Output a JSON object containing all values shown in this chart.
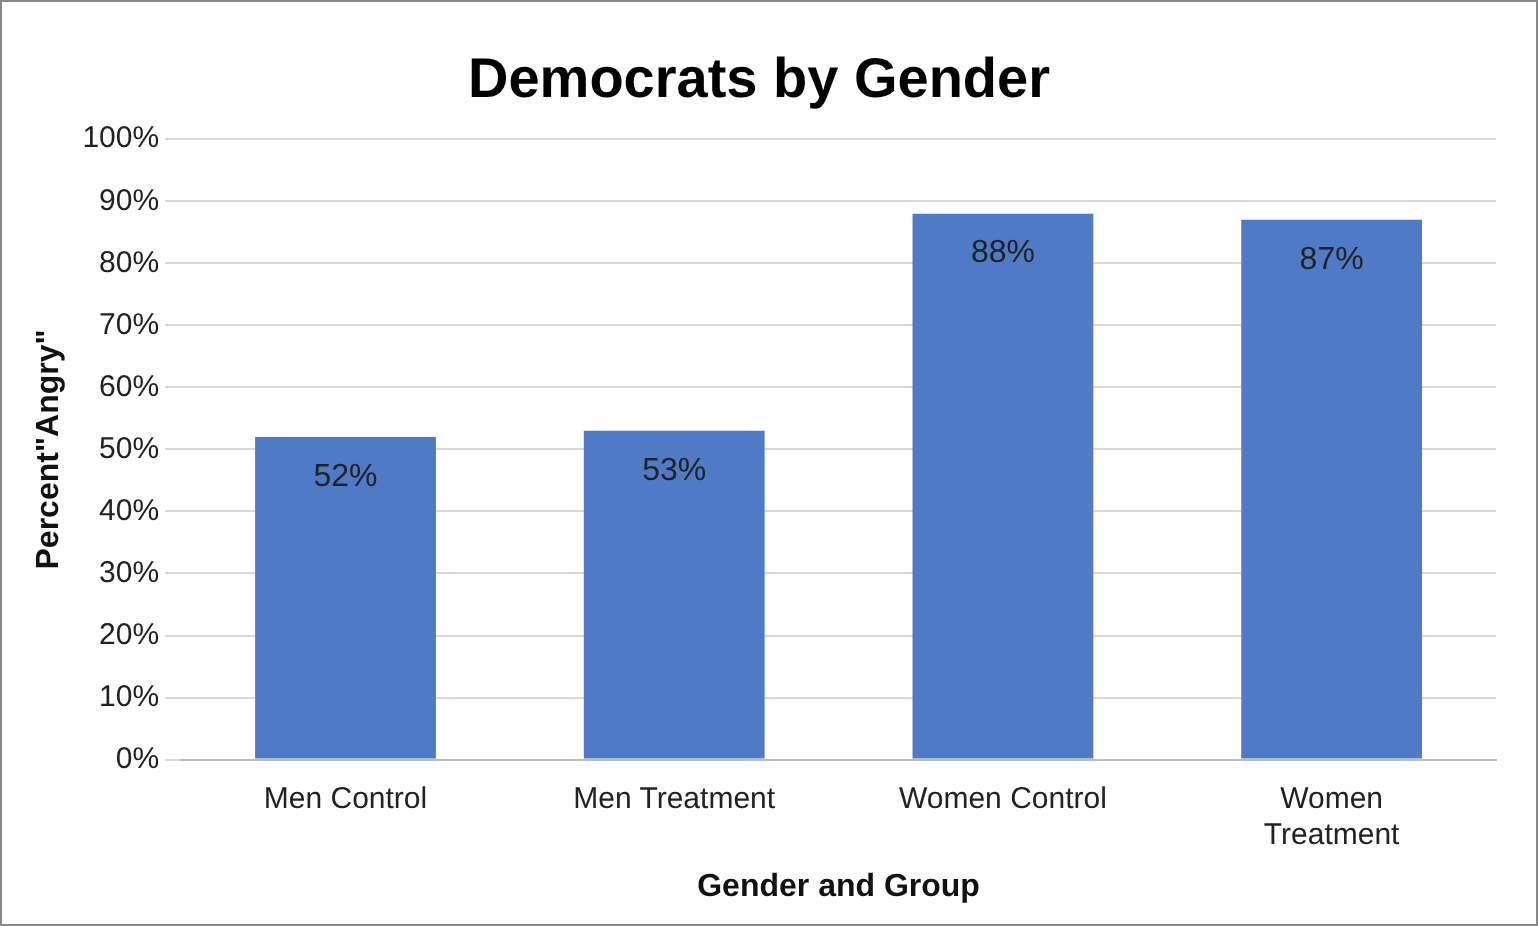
{
  "chart_data": {
    "type": "bar",
    "title": "Democrats by Gender",
    "xlabel": "Gender and Group",
    "ylabel": "Percent\"Angry\"",
    "categories": [
      "Men Control",
      "Men Treatment",
      "Women Control",
      "Women Treatment"
    ],
    "values": [
      52,
      53,
      88,
      87
    ],
    "value_labels": [
      "52%",
      "53%",
      "88%",
      "87%"
    ],
    "color": "#4f7ac5",
    "ylim": [
      0,
      100
    ],
    "yticks": [
      {
        "value": 0,
        "label": "0%"
      },
      {
        "value": 10,
        "label": "10%"
      },
      {
        "value": 20,
        "label": "20%"
      },
      {
        "value": 30,
        "label": "30%"
      },
      {
        "value": 40,
        "label": "40%"
      },
      {
        "value": 50,
        "label": "50%"
      },
      {
        "value": 60,
        "label": "60%"
      },
      {
        "value": 70,
        "label": "70%"
      },
      {
        "value": 80,
        "label": "80%"
      },
      {
        "value": 90,
        "label": "90%"
      },
      {
        "value": 100,
        "label": "100%"
      }
    ],
    "grid": "y",
    "legend": false
  }
}
